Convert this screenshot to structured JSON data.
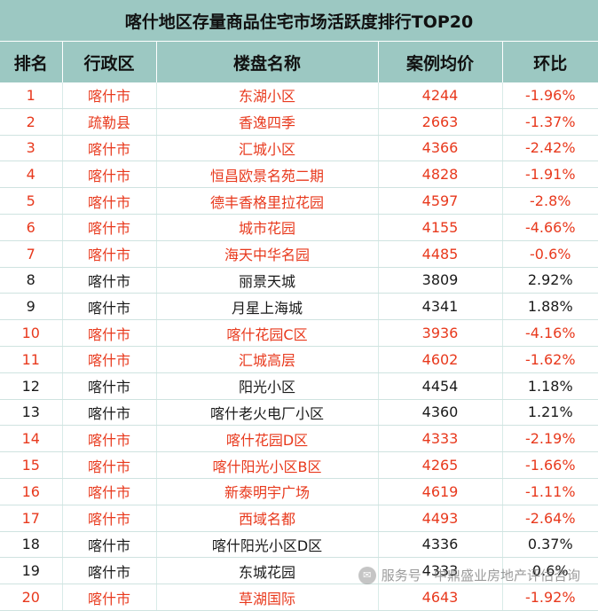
{
  "title": "喀什地区存量商品住宅市场活跃度排行TOP20",
  "columns": [
    "排名",
    "行政区",
    "楼盘名称",
    "案例均价",
    "环比"
  ],
  "colors": {
    "header_bg": "#9cc8c2",
    "red_text": "#e8391d",
    "black_text": "#1a1a1a"
  },
  "rows": [
    {
      "rank": "1",
      "district": "喀什市",
      "name": "东湖小区",
      "price": "4244",
      "change": "-1.96%",
      "tone": "red"
    },
    {
      "rank": "2",
      "district": "疏勒县",
      "name": "香逸四季",
      "price": "2663",
      "change": "-1.37%",
      "tone": "red"
    },
    {
      "rank": "3",
      "district": "喀什市",
      "name": "汇城小区",
      "price": "4366",
      "change": "-2.42%",
      "tone": "red"
    },
    {
      "rank": "4",
      "district": "喀什市",
      "name": "恒昌欧景名苑二期",
      "price": "4828",
      "change": "-1.91%",
      "tone": "red"
    },
    {
      "rank": "5",
      "district": "喀什市",
      "name": "德丰香格里拉花园",
      "price": "4597",
      "change": "-2.8%",
      "tone": "red"
    },
    {
      "rank": "6",
      "district": "喀什市",
      "name": "城市花园",
      "price": "4155",
      "change": "-4.66%",
      "tone": "red"
    },
    {
      "rank": "7",
      "district": "喀什市",
      "name": "海天中华名园",
      "price": "4485",
      "change": "-0.6%",
      "tone": "red"
    },
    {
      "rank": "8",
      "district": "喀什市",
      "name": "丽景天城",
      "price": "3809",
      "change": "2.92%",
      "tone": "black"
    },
    {
      "rank": "9",
      "district": "喀什市",
      "name": "月星上海城",
      "price": "4341",
      "change": "1.88%",
      "tone": "black"
    },
    {
      "rank": "10",
      "district": "喀什市",
      "name": "喀什花园C区",
      "price": "3936",
      "change": "-4.16%",
      "tone": "red"
    },
    {
      "rank": "11",
      "district": "喀什市",
      "name": "汇城高层",
      "price": "4602",
      "change": "-1.62%",
      "tone": "red"
    },
    {
      "rank": "12",
      "district": "喀什市",
      "name": "阳光小区",
      "price": "4454",
      "change": "1.18%",
      "tone": "black"
    },
    {
      "rank": "13",
      "district": "喀什市",
      "name": "喀什老火电厂小区",
      "price": "4360",
      "change": "1.21%",
      "tone": "black"
    },
    {
      "rank": "14",
      "district": "喀什市",
      "name": "喀什花园D区",
      "price": "4333",
      "change": "-2.19%",
      "tone": "red"
    },
    {
      "rank": "15",
      "district": "喀什市",
      "name": "喀什阳光小区B区",
      "price": "4265",
      "change": "-1.66%",
      "tone": "red"
    },
    {
      "rank": "16",
      "district": "喀什市",
      "name": "新泰明宇广场",
      "price": "4619",
      "change": "-1.11%",
      "tone": "red"
    },
    {
      "rank": "17",
      "district": "喀什市",
      "name": "西域名都",
      "price": "4493",
      "change": "-2.64%",
      "tone": "red"
    },
    {
      "rank": "18",
      "district": "喀什市",
      "name": "喀什阳光小区D区",
      "price": "4336",
      "change": "0.37%",
      "tone": "black"
    },
    {
      "rank": "19",
      "district": "喀什市",
      "name": "东城花园",
      "price": "4333",
      "change": "0.6%",
      "tone": "black"
    },
    {
      "rank": "20",
      "district": "喀什市",
      "name": "草湖国际",
      "price": "4643",
      "change": "-1.92%",
      "tone": "red"
    }
  ],
  "watermark": {
    "text": "服务号 · 中鼎盛业房地产评估咨询",
    "icon": "wechat-icon"
  }
}
